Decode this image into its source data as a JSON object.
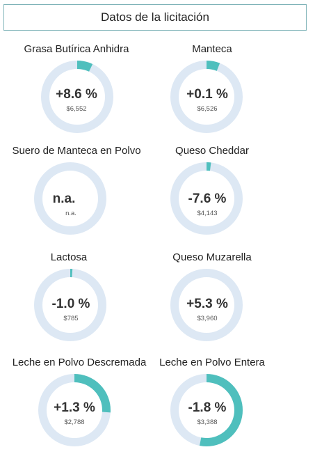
{
  "header": {
    "title": "Datos de la licitación"
  },
  "colors": {
    "track": "#dde8f4",
    "fill": "#4fbfbd"
  },
  "products": [
    {
      "name": "Grasa Butírica Anhidra",
      "change": "+8.6 %",
      "price": "$6,552",
      "fill_fraction": 0.07
    },
    {
      "name": "Manteca",
      "change": "+0.1 %",
      "price": "$6,526",
      "fill_fraction": 0.06
    },
    {
      "name": "Suero de Manteca en Polvo",
      "change": "n.a.",
      "price": "n.a.",
      "fill_fraction": 0.0
    },
    {
      "name": "Queso Cheddar",
      "change": "-7.6 %",
      "price": "$4,143",
      "fill_fraction": 0.02
    },
    {
      "name": "Lactosa",
      "change": "-1.0 %",
      "price": "$785",
      "fill_fraction": 0.01
    },
    {
      "name": "Queso Muzarella",
      "change": "+5.3 %",
      "price": "$3,960",
      "fill_fraction": 0.0
    },
    {
      "name": "Leche en Polvo Descremada",
      "change": "+1.3 %",
      "price": "$2,788",
      "fill_fraction": 0.26
    },
    {
      "name": "Leche en Polvo Entera",
      "change": "-1.8 %",
      "price": "$3,388",
      "fill_fraction": 0.53
    }
  ]
}
